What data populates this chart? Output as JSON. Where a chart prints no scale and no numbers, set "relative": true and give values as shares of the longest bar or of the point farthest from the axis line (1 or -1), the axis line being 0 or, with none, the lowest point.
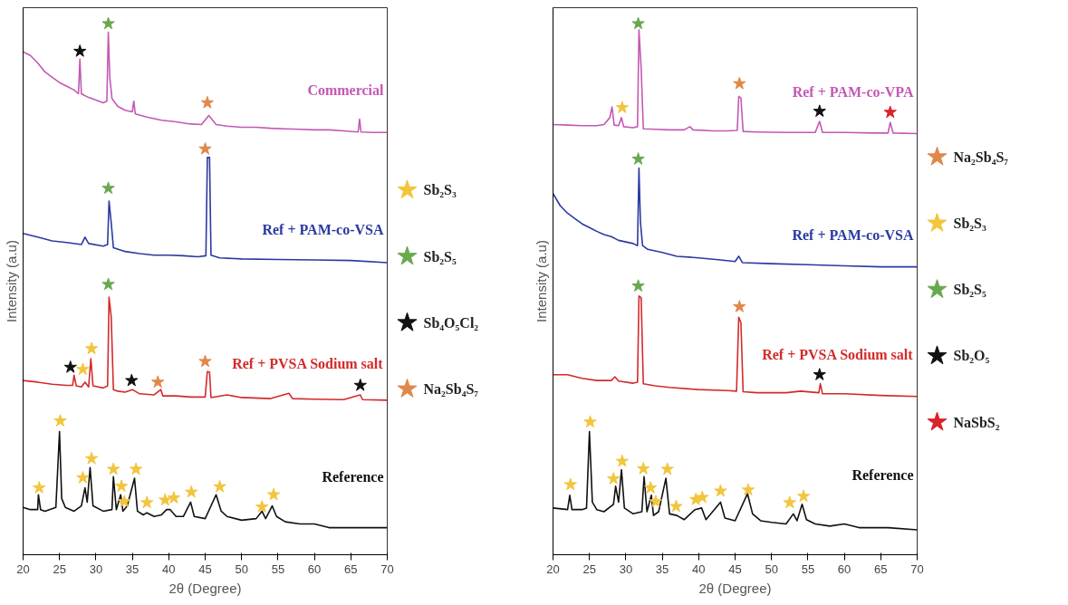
{
  "chart_data": [
    {
      "type": "line",
      "xlabel": "2θ (Degree)",
      "ylabel": "Intensity (a.u)",
      "relative": true,
      "xlim": [
        20,
        70
      ],
      "xticks": [
        20,
        25,
        30,
        35,
        40,
        45,
        50,
        55,
        60,
        65,
        70
      ],
      "grid": false,
      "legend": "right",
      "tick_labels": "x",
      "series": [
        {
          "name": "Commercial",
          "color": "#c458b4",
          "x": [
            20,
            21,
            22,
            23,
            24,
            25,
            26,
            27,
            27.6,
            27.8,
            28.0,
            28.4,
            29,
            30,
            31,
            31.5,
            31.7,
            31.9,
            32.2,
            33,
            34,
            35,
            35.2,
            35.4,
            37,
            39,
            41,
            43,
            44.5,
            45.5,
            46.5,
            48,
            50,
            52,
            54,
            56,
            58,
            60,
            62,
            64,
            66,
            66.2,
            66.4,
            68,
            70
          ],
          "values": [
            0.947,
            0.94,
            0.926,
            0.909,
            0.899,
            0.889,
            0.882,
            0.875,
            0.868,
            0.933,
            0.868,
            0.865,
            0.861,
            0.856,
            0.851,
            0.854,
            0.984,
            0.899,
            0.859,
            0.844,
            0.837,
            0.834,
            0.854,
            0.83,
            0.824,
            0.818,
            0.815,
            0.811,
            0.81,
            0.827,
            0.81,
            0.807,
            0.805,
            0.805,
            0.803,
            0.802,
            0.801,
            0.8,
            0.8,
            0.798,
            0.796,
            0.82,
            0.796,
            0.795,
            0.795
          ]
        },
        {
          "name": "Ref + PAM-co-VSA",
          "color": "#2a3aa0",
          "x": [
            20,
            22,
            24,
            26,
            28,
            28.5,
            29,
            31,
            31.6,
            31.8,
            32.1,
            32.4,
            34,
            36,
            38,
            40,
            42,
            44,
            45.1,
            45.3,
            45.6,
            45.8,
            47,
            50,
            55,
            60,
            65,
            70
          ],
          "values": [
            0.605,
            0.598,
            0.591,
            0.588,
            0.584,
            0.598,
            0.586,
            0.581,
            0.584,
            0.666,
            0.625,
            0.578,
            0.571,
            0.567,
            0.564,
            0.564,
            0.563,
            0.561,
            0.563,
            0.748,
            0.748,
            0.564,
            0.559,
            0.557,
            0.556,
            0.555,
            0.554,
            0.55
          ]
        },
        {
          "name": "Ref + PVSA Sodium salt",
          "color": "#d42a2a",
          "x": [
            20,
            22,
            24,
            26,
            26.8,
            27.0,
            27.3,
            28,
            28.5,
            29,
            29.3,
            29.6,
            31,
            31.6,
            31.8,
            32.1,
            32.4,
            33,
            34,
            35,
            36,
            38,
            38.9,
            39.2,
            41,
            43,
            45,
            45.3,
            45.6,
            45.8,
            48,
            50,
            54,
            56.5,
            57,
            60,
            64,
            66.3,
            66.6,
            70
          ],
          "values": [
            0.328,
            0.325,
            0.321,
            0.319,
            0.319,
            0.338,
            0.318,
            0.316,
            0.325,
            0.316,
            0.369,
            0.318,
            0.314,
            0.318,
            0.485,
            0.448,
            0.311,
            0.308,
            0.306,
            0.311,
            0.303,
            0.301,
            0.311,
            0.299,
            0.299,
            0.297,
            0.297,
            0.345,
            0.344,
            0.296,
            0.301,
            0.296,
            0.294,
            0.304,
            0.294,
            0.293,
            0.292,
            0.301,
            0.292,
            0.291
          ]
        },
        {
          "name": "Reference",
          "color": "#111111",
          "x": [
            20,
            21,
            22,
            22.1,
            22.4,
            23,
            24.5,
            25,
            25.3,
            25.8,
            27,
            28,
            28.5,
            28.8,
            29.2,
            29.6,
            31,
            32.2,
            32.4,
            32.8,
            33.4,
            33.7,
            34.3,
            35.3,
            35.7,
            36.5,
            37,
            38,
            39,
            39.7,
            40.2,
            41,
            42,
            43,
            43.5,
            45,
            46.5,
            47.2,
            48,
            50,
            52,
            52.8,
            53.3,
            54.2,
            54.8,
            56,
            58,
            60,
            62,
            65,
            68,
            70
          ],
          "values": [
            0.089,
            0.085,
            0.085,
            0.113,
            0.085,
            0.082,
            0.089,
            0.232,
            0.106,
            0.089,
            0.082,
            0.092,
            0.126,
            0.099,
            0.164,
            0.092,
            0.082,
            0.085,
            0.147,
            0.085,
            0.113,
            0.082,
            0.092,
            0.144,
            0.082,
            0.075,
            0.079,
            0.072,
            0.075,
            0.085,
            0.085,
            0.072,
            0.072,
            0.099,
            0.072,
            0.068,
            0.113,
            0.082,
            0.072,
            0.065,
            0.068,
            0.082,
            0.068,
            0.092,
            0.072,
            0.062,
            0.058,
            0.058,
            0.051,
            0.051,
            0.051,
            0.051
          ]
        },
        {
          "name": "Sb₂S₃",
          "type": "scatter",
          "marker": "star",
          "color": "#f2c53d",
          "x": [
            29.4,
            28.2,
            22.2,
            25.1,
            28.2,
            29.4,
            32.4,
            33.5,
            33.9,
            35.5,
            37,
            39.5,
            40.7,
            43.1,
            47,
            52.8,
            54.4
          ],
          "values": [
            0.388,
            0.349,
            0.126,
            0.252,
            0.145,
            0.181,
            0.161,
            0.129,
            0.1,
            0.161,
            0.098,
            0.103,
            0.107,
            0.118,
            0.128,
            0.09,
            0.113
          ]
        },
        {
          "name": "Sb₂S₅",
          "type": "scatter",
          "marker": "star",
          "color": "#6aa84f",
          "x": [
            31.7,
            31.7,
            31.7
          ],
          "values": [
            1.0,
            0.69,
            0.509
          ]
        },
        {
          "name": "Sb₄O₅Cl₂",
          "type": "scatter",
          "marker": "star",
          "color": "#111111",
          "x": [
            27.8,
            26.5,
            34.9,
            66.3
          ],
          "values": [
            0.948,
            0.353,
            0.328,
            0.319
          ]
        },
        {
          "name": "Na₂Sb₄S₇",
          "type": "scatter",
          "marker": "star",
          "color": "#e0884a",
          "x": [
            45.3,
            45.0,
            38.5,
            45.0
          ],
          "values": [
            0.851,
            0.764,
            0.325,
            0.364
          ]
        }
      ]
    },
    {
      "type": "line",
      "xlabel": "2θ (Degree)",
      "ylabel": "Intensity (a.u)",
      "relative": true,
      "xlim": [
        20,
        70
      ],
      "xticks": [
        20,
        25,
        30,
        35,
        40,
        45,
        50,
        55,
        60,
        65,
        70
      ],
      "grid": false,
      "legend": "right",
      "tick_labels": "x",
      "series": [
        {
          "name": "Ref + PAM-co-VPA",
          "color": "#c458b4",
          "x": [
            20,
            22,
            24,
            26,
            27,
            27.8,
            28.1,
            28.4,
            29,
            29.4,
            29.7,
            31,
            31.6,
            31.8,
            32.1,
            32.4,
            34,
            36,
            38,
            38.8,
            39.2,
            42,
            44,
            45.3,
            45.5,
            45.8,
            46.1,
            48,
            52,
            56,
            56.6,
            57,
            60,
            64,
            66,
            66.3,
            66.7,
            70
          ],
          "values": [
            0.81,
            0.809,
            0.808,
            0.808,
            0.81,
            0.823,
            0.843,
            0.809,
            0.808,
            0.823,
            0.806,
            0.804,
            0.806,
            0.988,
            0.917,
            0.802,
            0.801,
            0.8,
            0.8,
            0.806,
            0.8,
            0.798,
            0.798,
            0.799,
            0.863,
            0.86,
            0.797,
            0.796,
            0.795,
            0.795,
            0.816,
            0.795,
            0.795,
            0.794,
            0.794,
            0.814,
            0.794,
            0.793
          ]
        },
        {
          "name": "Ref + PAM-co-VSA",
          "color": "#2a3aa0",
          "x": [
            20,
            21,
            22,
            23,
            24,
            25,
            26,
            27,
            28,
            29,
            30,
            31,
            31.6,
            31.8,
            32.0,
            32.3,
            33,
            35,
            37,
            40,
            43,
            45,
            45.5,
            46,
            50,
            55,
            60,
            65,
            70
          ],
          "values": [
            0.68,
            0.657,
            0.643,
            0.633,
            0.623,
            0.616,
            0.609,
            0.603,
            0.599,
            0.592,
            0.589,
            0.586,
            0.582,
            0.728,
            0.626,
            0.582,
            0.575,
            0.569,
            0.562,
            0.559,
            0.555,
            0.552,
            0.562,
            0.55,
            0.548,
            0.546,
            0.544,
            0.542,
            0.542
          ]
        },
        {
          "name": "Ref + PVSA Sodium salt",
          "color": "#d42a2a",
          "x": [
            20,
            22,
            24,
            26,
            28,
            28.5,
            29,
            31,
            31.6,
            31.8,
            32.1,
            32.4,
            34,
            36,
            40,
            44,
            45.2,
            45.5,
            45.8,
            46.1,
            48,
            52,
            54,
            56.5,
            56.7,
            57,
            60,
            65,
            70
          ],
          "values": [
            0.339,
            0.339,
            0.332,
            0.328,
            0.328,
            0.335,
            0.327,
            0.323,
            0.325,
            0.487,
            0.484,
            0.322,
            0.318,
            0.315,
            0.311,
            0.309,
            0.308,
            0.447,
            0.437,
            0.307,
            0.305,
            0.305,
            0.308,
            0.305,
            0.322,
            0.303,
            0.303,
            0.3,
            0.298
          ]
        },
        {
          "name": "Reference",
          "color": "#111111",
          "x": [
            20,
            22,
            22.3,
            22.6,
            24,
            24.6,
            25,
            25.4,
            26,
            27,
            28.3,
            28.6,
            29,
            29.4,
            29.8,
            31,
            32.2,
            32.5,
            32.9,
            33.5,
            33.8,
            34.5,
            35.5,
            36,
            37,
            38,
            39.5,
            40.4,
            41,
            43,
            43.6,
            45,
            46.7,
            47.4,
            48.5,
            50,
            52,
            53,
            53.5,
            54.2,
            54.8,
            56,
            58,
            60,
            62,
            66,
            70
          ],
          "values": [
            0.088,
            0.085,
            0.112,
            0.085,
            0.085,
            0.088,
            0.232,
            0.099,
            0.085,
            0.081,
            0.095,
            0.129,
            0.099,
            0.16,
            0.088,
            0.077,
            0.081,
            0.147,
            0.081,
            0.112,
            0.074,
            0.081,
            0.144,
            0.077,
            0.074,
            0.066,
            0.085,
            0.088,
            0.066,
            0.099,
            0.069,
            0.064,
            0.115,
            0.077,
            0.064,
            0.061,
            0.058,
            0.077,
            0.064,
            0.095,
            0.066,
            0.058,
            0.054,
            0.058,
            0.051,
            0.051,
            0.047
          ]
        },
        {
          "name": "Na₂Sb₄S₇",
          "type": "scatter",
          "marker": "star",
          "color": "#e0884a",
          "x": [
            45.6,
            45.6
          ],
          "values": [
            0.887,
            0.467
          ]
        },
        {
          "name": "Sb₂S₃",
          "type": "scatter",
          "marker": "star",
          "color": "#f2c53d",
          "x": [
            29.5,
            22.4,
            25.1,
            28.3,
            29.5,
            32.4,
            33.4,
            34.1,
            35.7,
            36.9,
            39.6,
            40.5,
            43,
            46.8,
            52.5,
            54.4
          ],
          "values": [
            0.842,
            0.132,
            0.25,
            0.143,
            0.176,
            0.162,
            0.126,
            0.1,
            0.161,
            0.091,
            0.104,
            0.108,
            0.12,
            0.122,
            0.098,
            0.11
          ]
        },
        {
          "name": "Sb₂S₅",
          "type": "scatter",
          "marker": "star",
          "color": "#6aa84f",
          "x": [
            31.7,
            31.7,
            31.7
          ],
          "values": [
            1.0,
            0.745,
            0.506
          ]
        },
        {
          "name": "Sb₂O₅",
          "type": "scatter",
          "marker": "star",
          "color": "#111111",
          "x": [
            56.6,
            56.6
          ],
          "values": [
            0.835,
            0.339
          ]
        },
        {
          "name": "NaSbS₂",
          "type": "scatter",
          "marker": "star",
          "color": "#d9222a",
          "x": [
            66.3
          ],
          "values": [
            0.833
          ]
        }
      ]
    }
  ]
}
